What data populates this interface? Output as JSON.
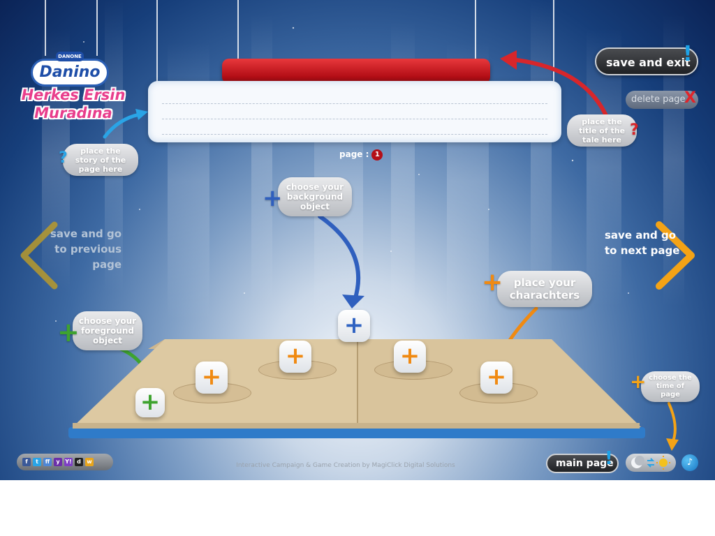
{
  "logo": {
    "brand_small": "DANONE",
    "name": "Danino",
    "line1": "Herkes Ersin",
    "line2": "Muradına"
  },
  "story": {
    "page_label": "page :",
    "page_number": "1"
  },
  "hints": {
    "story": "place the story of the page here",
    "title": "place the title of the tale here",
    "background": "choose your background object",
    "characters": "place your charachters",
    "foreground": "choose your foreground object",
    "time": "choose the time of page",
    "question_mark": "?"
  },
  "buttons": {
    "save_exit": "save and exit",
    "delete_page": "delete page",
    "delete_mark": "X",
    "main_page": "main page",
    "exclaim": "!"
  },
  "nav": {
    "prev": "save and go to previous page",
    "next": "save and go to next page"
  },
  "plus_symbol": "+",
  "footer": {
    "credit": "Interactive Campaign & Game Creation by MagiClick Digital Solutions"
  },
  "social": [
    "f",
    "t",
    "ff",
    "y",
    "Y!",
    "d",
    "w"
  ],
  "colors": {
    "accent_red": "#b50f17",
    "accent_orange": "#f08a12",
    "accent_blue": "#2f63c2",
    "accent_green": "#3ea32f",
    "exclaim_blue": "#1da3e8"
  },
  "icons": {
    "prev": "chevron-left-icon",
    "next": "chevron-right-icon",
    "time": "moon-sun-icon",
    "music": "music-note-icon"
  }
}
